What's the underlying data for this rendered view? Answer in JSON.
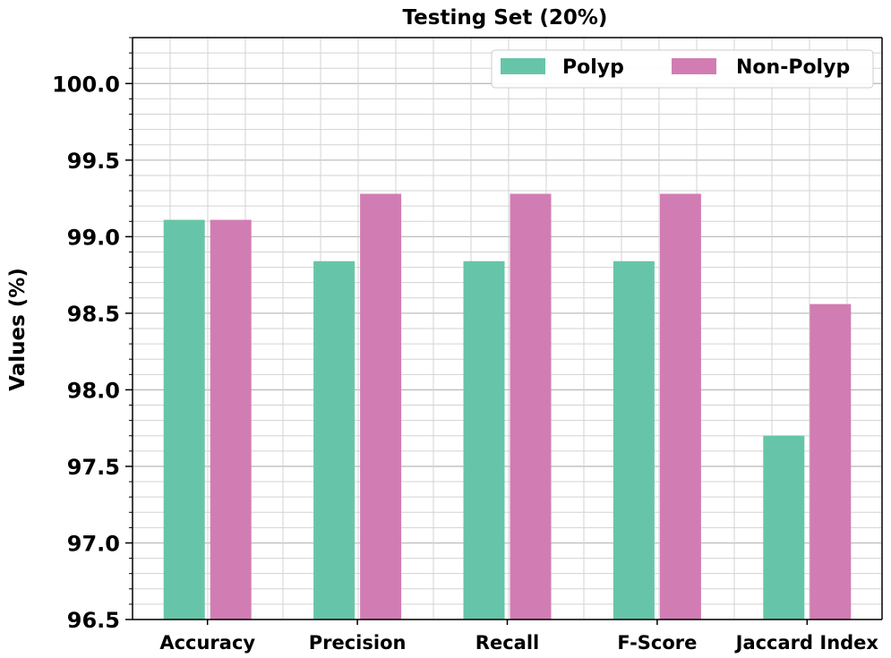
{
  "chart_data": {
    "type": "bar",
    "title": "Testing Set (20%)",
    "xlabel": "",
    "ylabel": "Values (%)",
    "categories": [
      "Accuracy",
      "Precision",
      "Recall",
      "F-Score",
      "Jaccard Index"
    ],
    "series": [
      {
        "name": "Polyp",
        "color": "#66c5a8",
        "values": [
          99.11,
          98.84,
          98.84,
          98.84,
          97.7
        ]
      },
      {
        "name": "Non-Polyp",
        "color": "#d17db3",
        "values": [
          99.11,
          99.28,
          99.28,
          99.28,
          98.56
        ]
      }
    ],
    "ylim": [
      96.5,
      100.3
    ],
    "yticks": [
      "96.5",
      "97.0",
      "97.5",
      "98.0",
      "98.5",
      "99.0",
      "99.5",
      "100.0"
    ],
    "grid": true,
    "legend_position": "top-right"
  }
}
